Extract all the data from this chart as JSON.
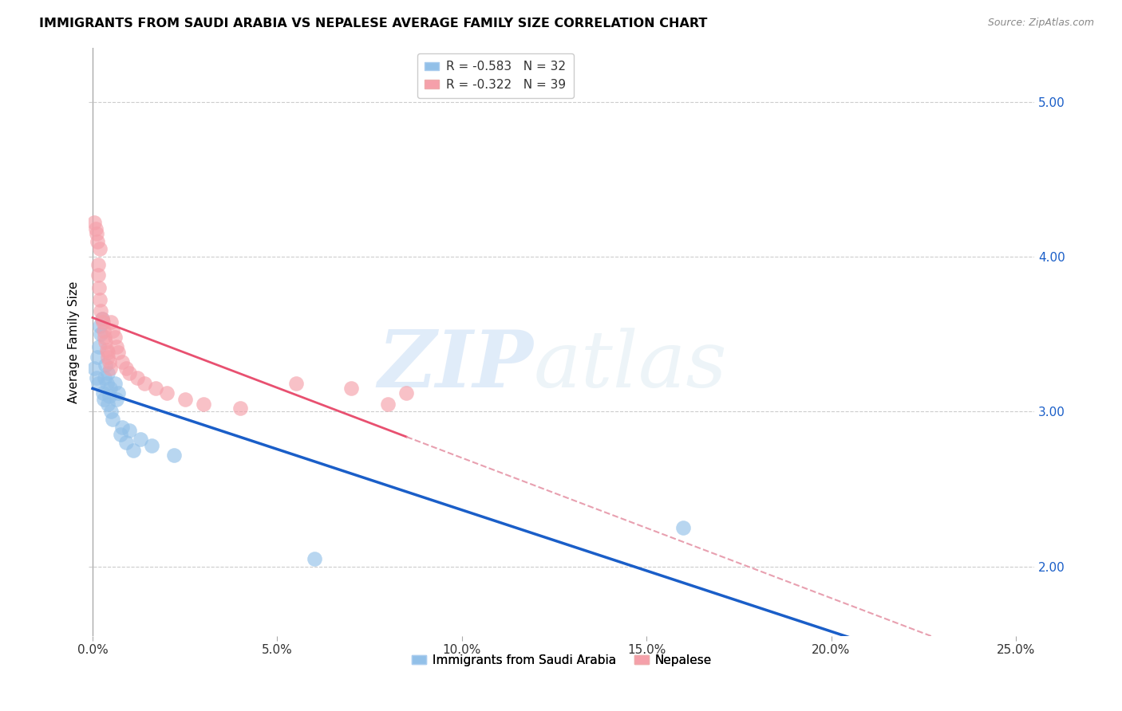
{
  "title": "IMMIGRANTS FROM SAUDI ARABIA VS NEPALESE AVERAGE FAMILY SIZE CORRELATION CHART",
  "source": "Source: ZipAtlas.com",
  "ylabel": "Average Family Size",
  "xlabel_ticks": [
    "0.0%",
    "5.0%",
    "10.0%",
    "15.0%",
    "20.0%",
    "25.0%"
  ],
  "xlabel_tick_vals": [
    0.0,
    0.05,
    0.1,
    0.15,
    0.2,
    0.25
  ],
  "ylabel_ticks": [
    2.0,
    3.0,
    4.0,
    5.0
  ],
  "xlim": [
    -0.001,
    0.255
  ],
  "ylim": [
    1.55,
    5.35
  ],
  "watermark_zip": "ZIP",
  "watermark_atlas": "atlas",
  "legend1_label": "R = -0.583   N = 32",
  "legend2_label": "R = -0.322   N = 39",
  "legend_bottom_label1": "Immigrants from Saudi Arabia",
  "legend_bottom_label2": "Nepalese",
  "blue_color": "#92c0e8",
  "pink_color": "#f5a0aa",
  "blue_line_color": "#1a5ec8",
  "pink_line_color": "#e85070",
  "pink_dash_color": "#e8a0b0",
  "blue_scatter": [
    [
      0.0005,
      3.28
    ],
    [
      0.001,
      3.22
    ],
    [
      0.0012,
      3.35
    ],
    [
      0.0015,
      3.18
    ],
    [
      0.0018,
      3.42
    ],
    [
      0.002,
      3.55
    ],
    [
      0.0022,
      3.5
    ],
    [
      0.0025,
      3.6
    ],
    [
      0.0028,
      3.12
    ],
    [
      0.003,
      3.08
    ],
    [
      0.0032,
      3.22
    ],
    [
      0.0035,
      3.3
    ],
    [
      0.0038,
      3.18
    ],
    [
      0.004,
      3.05
    ],
    [
      0.0042,
      3.25
    ],
    [
      0.0045,
      3.1
    ],
    [
      0.0048,
      3.15
    ],
    [
      0.005,
      3.0
    ],
    [
      0.0055,
      2.95
    ],
    [
      0.006,
      3.18
    ],
    [
      0.0065,
      3.08
    ],
    [
      0.007,
      3.12
    ],
    [
      0.0075,
      2.85
    ],
    [
      0.008,
      2.9
    ],
    [
      0.009,
      2.8
    ],
    [
      0.01,
      2.88
    ],
    [
      0.011,
      2.75
    ],
    [
      0.013,
      2.82
    ],
    [
      0.016,
      2.78
    ],
    [
      0.022,
      2.72
    ],
    [
      0.06,
      2.05
    ],
    [
      0.16,
      2.25
    ]
  ],
  "pink_scatter": [
    [
      0.0005,
      4.22
    ],
    [
      0.0008,
      4.18
    ],
    [
      0.001,
      4.15
    ],
    [
      0.0012,
      4.1
    ],
    [
      0.0015,
      3.95
    ],
    [
      0.0015,
      3.88
    ],
    [
      0.0018,
      3.8
    ],
    [
      0.002,
      3.72
    ],
    [
      0.002,
      4.05
    ],
    [
      0.0022,
      3.65
    ],
    [
      0.0025,
      3.6
    ],
    [
      0.0028,
      3.58
    ],
    [
      0.003,
      3.52
    ],
    [
      0.0032,
      3.48
    ],
    [
      0.0035,
      3.45
    ],
    [
      0.0038,
      3.4
    ],
    [
      0.004,
      3.38
    ],
    [
      0.0042,
      3.35
    ],
    [
      0.0045,
      3.32
    ],
    [
      0.0048,
      3.28
    ],
    [
      0.005,
      3.58
    ],
    [
      0.0055,
      3.52
    ],
    [
      0.006,
      3.48
    ],
    [
      0.0065,
      3.42
    ],
    [
      0.007,
      3.38
    ],
    [
      0.008,
      3.32
    ],
    [
      0.009,
      3.28
    ],
    [
      0.01,
      3.25
    ],
    [
      0.012,
      3.22
    ],
    [
      0.014,
      3.18
    ],
    [
      0.017,
      3.15
    ],
    [
      0.02,
      3.12
    ],
    [
      0.025,
      3.08
    ],
    [
      0.03,
      3.05
    ],
    [
      0.04,
      3.02
    ],
    [
      0.055,
      3.18
    ],
    [
      0.07,
      3.15
    ],
    [
      0.08,
      3.05
    ],
    [
      0.085,
      3.12
    ]
  ]
}
